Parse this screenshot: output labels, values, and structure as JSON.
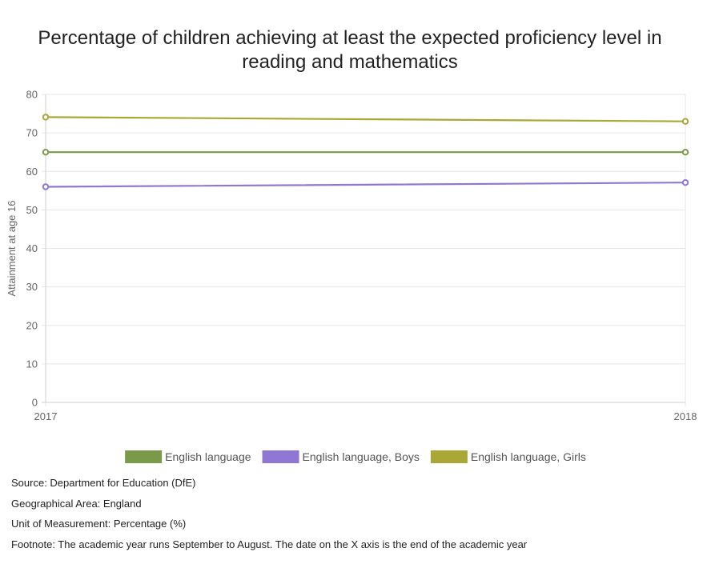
{
  "title": "Percentage of children achieving at least the expected proficiency level in reading and mathematics",
  "chart_data": {
    "type": "line",
    "x": [
      "2017",
      "2018"
    ],
    "ylabel": "Attainment at age 16",
    "ylim": [
      0,
      80
    ],
    "yticks": [
      0,
      10,
      20,
      30,
      40,
      50,
      60,
      70,
      80
    ],
    "grid": true,
    "legend_position": "bottom",
    "series": [
      {
        "name": "English language",
        "values": [
          65,
          65
        ],
        "color": "#7a9a4a"
      },
      {
        "name": "English language, Boys",
        "values": [
          56,
          57.1
        ],
        "color": "#9177d4"
      },
      {
        "name": "English language, Girls",
        "values": [
          74.1,
          73
        ],
        "color": "#a9a836"
      }
    ]
  },
  "notes": {
    "source": "Source: Department for Education (DfE)",
    "area": "Geographical Area: England",
    "unit": "Unit of Measurement: Percentage (%)",
    "footnote": "Footnote: The academic year runs September to August. The date on the X axis is the end of the academic year"
  }
}
